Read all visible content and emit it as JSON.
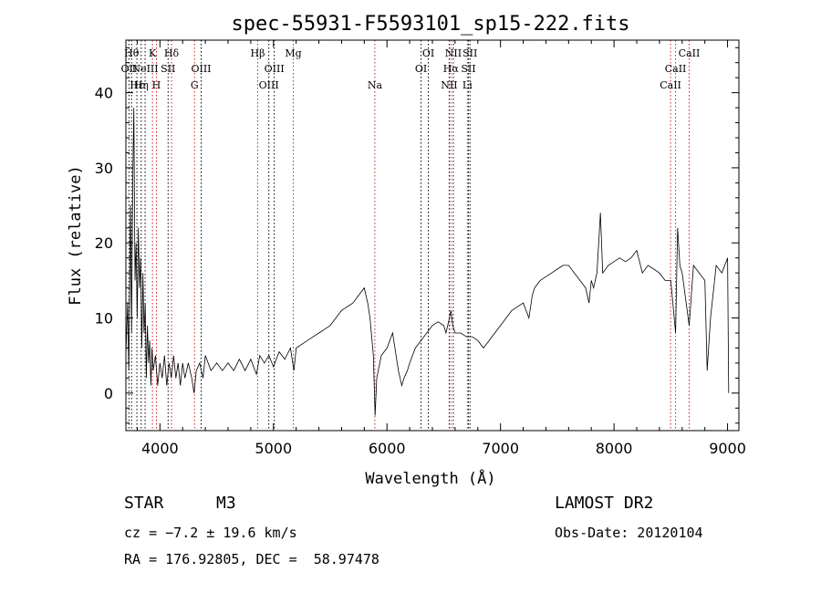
{
  "chart_data": {
    "type": "line",
    "title": "spec-55931-F5593101_sp15-222.fits",
    "xlabel": "Wavelength (Å)",
    "ylabel": "Flux (relative)",
    "xlim": [
      3700,
      9100
    ],
    "ylim": [
      -5,
      47
    ],
    "xticks": [
      4000,
      5000,
      6000,
      7000,
      8000,
      9000
    ],
    "yticks": [
      0,
      10,
      20,
      30,
      40
    ],
    "series": [
      {
        "values": [
          [
            3700,
            5
          ],
          [
            3715,
            12
          ],
          [
            3725,
            3
          ],
          [
            3740,
            25
          ],
          [
            3750,
            8
          ],
          [
            3760,
            28
          ],
          [
            3770,
            38
          ],
          [
            3780,
            15
          ],
          [
            3790,
            20
          ],
          [
            3800,
            10
          ],
          [
            3810,
            22
          ],
          [
            3820,
            14
          ],
          [
            3830,
            18
          ],
          [
            3840,
            6
          ],
          [
            3850,
            16
          ],
          [
            3860,
            8
          ],
          [
            3870,
            12
          ],
          [
            3880,
            2
          ],
          [
            3890,
            9
          ],
          [
            3900,
            4
          ],
          [
            3910,
            7
          ],
          [
            3920,
            1
          ],
          [
            3930,
            6
          ],
          [
            3940,
            3
          ],
          [
            3960,
            5
          ],
          [
            3980,
            1
          ],
          [
            4000,
            4
          ],
          [
            4020,
            2
          ],
          [
            4040,
            5
          ],
          [
            4060,
            1
          ],
          [
            4080,
            4
          ],
          [
            4100,
            2
          ],
          [
            4120,
            5
          ],
          [
            4140,
            2
          ],
          [
            4160,
            4
          ],
          [
            4180,
            1
          ],
          [
            4200,
            4
          ],
          [
            4220,
            2
          ],
          [
            4250,
            4
          ],
          [
            4280,
            2
          ],
          [
            4300,
            0
          ],
          [
            4320,
            3
          ],
          [
            4350,
            4
          ],
          [
            4380,
            2
          ],
          [
            4400,
            5
          ],
          [
            4450,
            3
          ],
          [
            4500,
            4
          ],
          [
            4550,
            3
          ],
          [
            4600,
            4
          ],
          [
            4650,
            3
          ],
          [
            4700,
            4.5
          ],
          [
            4750,
            3
          ],
          [
            4800,
            4.5
          ],
          [
            4850,
            2.5
          ],
          [
            4880,
            5
          ],
          [
            4920,
            4
          ],
          [
            4960,
            5
          ],
          [
            5000,
            3.5
          ],
          [
            5050,
            5.5
          ],
          [
            5100,
            4.5
          ],
          [
            5150,
            6
          ],
          [
            5180,
            3
          ],
          [
            5200,
            6
          ],
          [
            5250,
            6.5
          ],
          [
            5300,
            7
          ],
          [
            5350,
            7.5
          ],
          [
            5400,
            8
          ],
          [
            5450,
            8.5
          ],
          [
            5500,
            9
          ],
          [
            5550,
            10
          ],
          [
            5600,
            11
          ],
          [
            5650,
            11.5
          ],
          [
            5700,
            12
          ],
          [
            5750,
            13
          ],
          [
            5800,
            14
          ],
          [
            5830,
            12
          ],
          [
            5850,
            10
          ],
          [
            5880,
            5
          ],
          [
            5895,
            -3
          ],
          [
            5910,
            2
          ],
          [
            5950,
            5
          ],
          [
            6000,
            6
          ],
          [
            6050,
            8
          ],
          [
            6080,
            5
          ],
          [
            6100,
            3
          ],
          [
            6130,
            1
          ],
          [
            6150,
            2
          ],
          [
            6180,
            3
          ],
          [
            6200,
            4
          ],
          [
            6250,
            6
          ],
          [
            6300,
            7
          ],
          [
            6350,
            8
          ],
          [
            6400,
            9
          ],
          [
            6450,
            9.5
          ],
          [
            6500,
            9
          ],
          [
            6520,
            8
          ],
          [
            6550,
            10
          ],
          [
            6563,
            11
          ],
          [
            6580,
            9
          ],
          [
            6600,
            8
          ],
          [
            6650,
            8
          ],
          [
            6700,
            7.5
          ],
          [
            6750,
            7.5
          ],
          [
            6800,
            7
          ],
          [
            6850,
            6
          ],
          [
            6900,
            7
          ],
          [
            6950,
            8
          ],
          [
            7000,
            9
          ],
          [
            7050,
            10
          ],
          [
            7100,
            11
          ],
          [
            7150,
            11.5
          ],
          [
            7200,
            12
          ],
          [
            7250,
            10
          ],
          [
            7280,
            13
          ],
          [
            7300,
            14
          ],
          [
            7350,
            15
          ],
          [
            7400,
            15.5
          ],
          [
            7450,
            16
          ],
          [
            7500,
            16.5
          ],
          [
            7550,
            17
          ],
          [
            7600,
            17
          ],
          [
            7650,
            16
          ],
          [
            7700,
            15
          ],
          [
            7750,
            14
          ],
          [
            7780,
            12
          ],
          [
            7800,
            15
          ],
          [
            7820,
            14
          ],
          [
            7850,
            16
          ],
          [
            7880,
            24
          ],
          [
            7900,
            16
          ],
          [
            7950,
            17
          ],
          [
            8000,
            17.5
          ],
          [
            8050,
            18
          ],
          [
            8100,
            17.5
          ],
          [
            8150,
            18
          ],
          [
            8200,
            19
          ],
          [
            8250,
            16
          ],
          [
            8300,
            17
          ],
          [
            8350,
            16.5
          ],
          [
            8400,
            16
          ],
          [
            8450,
            15
          ],
          [
            8500,
            15
          ],
          [
            8542,
            8
          ],
          [
            8560,
            22
          ],
          [
            8580,
            17
          ],
          [
            8600,
            16
          ],
          [
            8662,
            9
          ],
          [
            8700,
            17
          ],
          [
            8750,
            16
          ],
          [
            8800,
            15
          ],
          [
            8820,
            3
          ],
          [
            8850,
            10
          ],
          [
            8900,
            17
          ],
          [
            8950,
            16
          ],
          [
            9000,
            18
          ],
          [
            9010,
            0
          ]
        ]
      }
    ],
    "lines": [
      {
        "w": 3727,
        "label": "OII",
        "row": 2,
        "color": "#000000"
      },
      {
        "w": 3750,
        "label": "Hθ",
        "row": 1,
        "color": "#000000"
      },
      {
        "w": 3797,
        "label": "Hε",
        "row": 3,
        "color": "#000000"
      },
      {
        "w": 3835,
        "label": "Hη",
        "row": 3,
        "color": "#000000"
      },
      {
        "w": 3869,
        "label": "NeIII",
        "row": 2,
        "color": "#000000"
      },
      {
        "w": 3934,
        "label": "K",
        "row": 1,
        "color": "#cc2222"
      },
      {
        "w": 3969,
        "label": "H",
        "row": 3,
        "color": "#cc2222"
      },
      {
        "w": 4072,
        "label": "SII",
        "row": 2,
        "color": "#000000"
      },
      {
        "w": 4102,
        "label": "Hδ",
        "row": 1,
        "color": "#cc2222"
      },
      {
        "w": 4305,
        "label": "G",
        "row": 3,
        "color": "#cc2222"
      },
      {
        "w": 4363,
        "label": "OIII",
        "row": 2,
        "color": "#000000"
      },
      {
        "w": 4861,
        "label": "Hβ",
        "row": 1,
        "color": "#cc2222"
      },
      {
        "w": 4959,
        "label": "OIII",
        "row": 3,
        "color": "#000000"
      },
      {
        "w": 5007,
        "label": "OIII",
        "row": 2,
        "color": "#000000"
      },
      {
        "w": 5175,
        "label": "Mg",
        "row": 1,
        "color": "#cc2222"
      },
      {
        "w": 5893,
        "label": "Na",
        "row": 3,
        "color": "#cc2222"
      },
      {
        "w": 6300,
        "label": "OI",
        "row": 2,
        "color": "#000000"
      },
      {
        "w": 6364,
        "label": "OI",
        "row": 1,
        "color": "#000000"
      },
      {
        "w": 6548,
        "label": "NII",
        "row": 3,
        "color": "#000000"
      },
      {
        "w": 6563,
        "label": "Hα",
        "row": 2,
        "color": "#cc2222"
      },
      {
        "w": 6584,
        "label": "NII",
        "row": 1,
        "color": "#000000"
      },
      {
        "w": 6708,
        "label": "Li",
        "row": 3,
        "color": "#cc2222"
      },
      {
        "w": 6717,
        "label": "SII",
        "row": 2,
        "color": "#000000"
      },
      {
        "w": 6731,
        "label": "SII",
        "row": 1,
        "color": "#000000"
      },
      {
        "w": 8498,
        "label": "CaII",
        "row": 3,
        "color": "#cc2222"
      },
      {
        "w": 8542,
        "label": "CaII",
        "row": 2,
        "color": "#cc2222"
      },
      {
        "w": 8662,
        "label": "CaII",
        "row": 1,
        "color": "#cc2222"
      }
    ]
  },
  "footer": {
    "class": "STAR",
    "subclass": "M3",
    "survey": "LAMOST DR2",
    "cz": "cz = −7.2 ± 19.6 km/s",
    "obsdate": "Obs-Date: 20120104",
    "radec": "RA = 176.92805, DEC =  58.97478"
  }
}
